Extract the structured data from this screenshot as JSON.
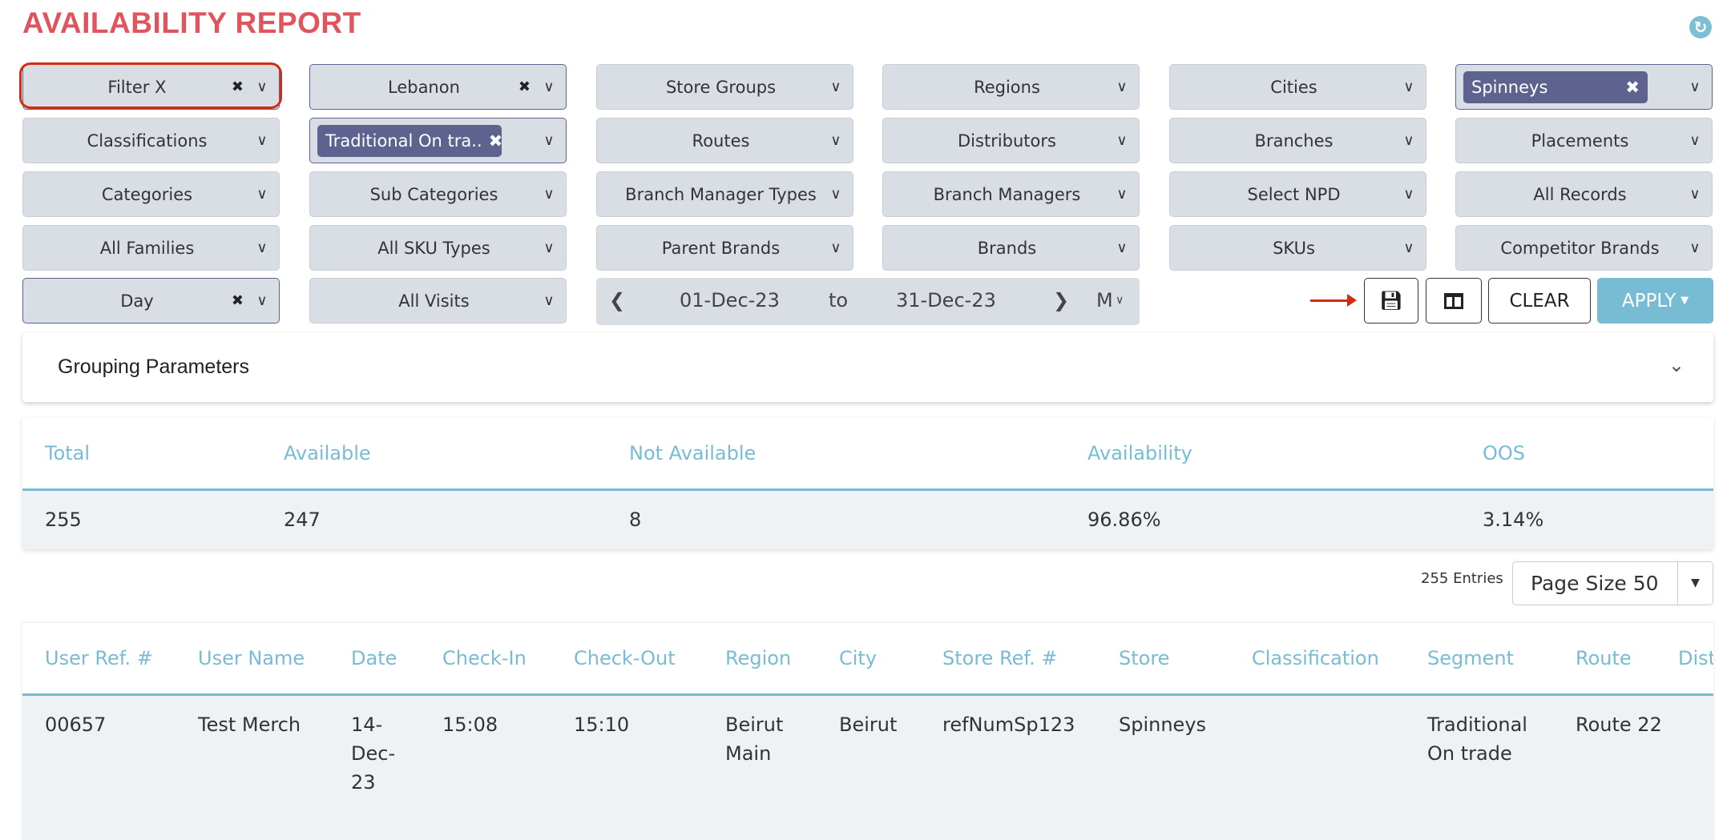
{
  "page_title": "AVAILABILITY REPORT",
  "filters": [
    {
      "label": "Filter X",
      "clearable": true
    },
    {
      "label": "Lebanon",
      "clearable": true
    },
    {
      "label": "Store Groups"
    },
    {
      "label": "Regions"
    },
    {
      "label": "Cities"
    },
    {
      "chip": "Spinneys"
    },
    {
      "label": "Classifications"
    },
    {
      "chip": "Traditional On tra.."
    },
    {
      "label": "Routes"
    },
    {
      "label": "Distributors"
    },
    {
      "label": "Branches"
    },
    {
      "label": "Placements"
    },
    {
      "label": "Categories"
    },
    {
      "label": "Sub Categories"
    },
    {
      "label": "Branch Manager Types"
    },
    {
      "label": "Branch Managers"
    },
    {
      "label": "Select NPD"
    },
    {
      "label": "All Records"
    },
    {
      "label": "All Families"
    },
    {
      "label": "All SKU Types"
    },
    {
      "label": "Parent Brands"
    },
    {
      "label": "Brands"
    },
    {
      "label": "SKUs"
    },
    {
      "label": "Competitor Brands"
    },
    {
      "label": "Day",
      "clearable": true
    },
    {
      "label": "All Visits"
    }
  ],
  "date_range": {
    "from": "01-Dec-23",
    "to_label": "to",
    "to": "31-Dec-23",
    "period": "M"
  },
  "actions": {
    "clear": "CLEAR",
    "apply": "APPLY"
  },
  "grouping": {
    "title": "Grouping Parameters"
  },
  "summary": {
    "headers": [
      "Total",
      "Available",
      "Not Available",
      "Availability",
      "OOS"
    ],
    "values": [
      "255",
      "247",
      "8",
      "96.86%",
      "3.14%"
    ]
  },
  "pagination": {
    "entries": "255 Entries",
    "page_size": "Page Size 50"
  },
  "table": {
    "headers": [
      "User Ref. #",
      "User Name",
      "Date",
      "Check-In",
      "Check-Out",
      "Region",
      "City",
      "Store Ref. #",
      "Store",
      "Classification",
      "Segment",
      "Route",
      "Dist"
    ],
    "rows": [
      [
        "00657",
        "Test Merch",
        "14-Dec-23",
        "15:08",
        "15:10",
        "Beirut Main",
        "Beirut",
        "refNumSp123",
        "Spinneys",
        "",
        "Traditional On trade",
        "Route 22",
        ""
      ]
    ]
  },
  "colors": {
    "title": "#e0545e",
    "accent": "#78bcd4",
    "chip": "#5d638e",
    "highlight": "#d42a10"
  }
}
